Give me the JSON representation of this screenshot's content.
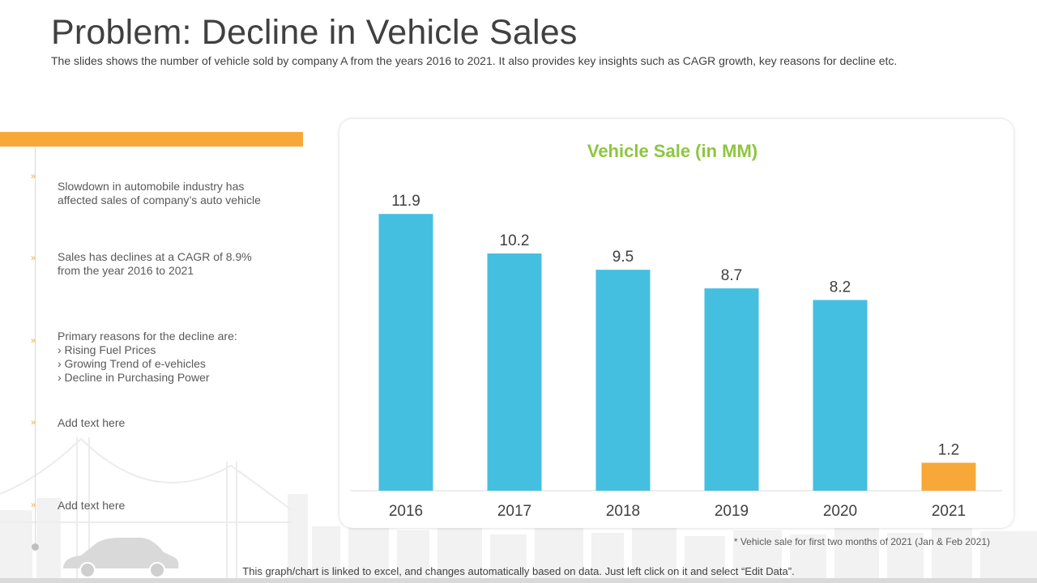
{
  "slide": {
    "title": "Problem: Decline in Vehicle Sales",
    "subtitle": "The slides shows the number of vehicle sold by company A from the years 2016 to 2021.  It also provides key insights such as CAGR growth, key reasons for decline etc."
  },
  "bullets": [
    {
      "lines": [
        "Slowdown in automobile industry has",
        "affected sales of company’s auto vehicle"
      ]
    },
    {
      "lines": [
        "Sales has declines at a CAGR  of 8.9%",
        "from  the year 2016 to 2021"
      ]
    },
    {
      "lines": [
        "Primary reasons for the decline are:",
        "›  Rising Fuel Prices",
        "›  Growing Trend of e-vehicles",
        "›  Decline in Purchasing Power"
      ]
    },
    {
      "lines": [
        "Add text here"
      ]
    },
    {
      "lines": [
        "Add text here"
      ]
    }
  ],
  "bullet_marker": "»",
  "chart_data": {
    "type": "bar",
    "title": "Vehicle Sale (in MM)",
    "categories": [
      "2016",
      "2017",
      "2018",
      "2019",
      "2020",
      "2021"
    ],
    "values": [
      11.9,
      10.2,
      9.5,
      8.7,
      8.2,
      1.2
    ],
    "data_labels": [
      "11.9",
      "10.2",
      "9.5",
      "8.7",
      "8.2",
      "1.2"
    ],
    "ylim": [
      0,
      12.5
    ],
    "grid": false,
    "xlabel": "",
    "ylabel": "",
    "colors": [
      "#45BFE0",
      "#45BFE0",
      "#45BFE0",
      "#45BFE0",
      "#45BFE0",
      "#F7A838"
    ],
    "title_color": "#8DC63F"
  },
  "footnote": "* Vehicle  sale for first two months of 2021 (Jan & Feb 2021)",
  "bottom_note": "This graph/chart is linked to excel, and changes automatically based on data. Just left click on it and select “Edit Data”."
}
